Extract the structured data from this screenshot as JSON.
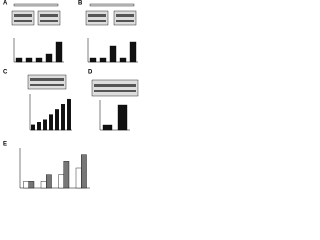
{
  "chart_data": [
    {
      "type": "bar",
      "label": "A",
      "values": [
        1,
        1,
        1,
        2,
        5
      ],
      "color": "#111111",
      "ylim": [
        0,
        6
      ]
    },
    {
      "type": "bar",
      "label": "B",
      "values": [
        1,
        1,
        4,
        1,
        5
      ],
      "color": "#111111",
      "ylim": [
        0,
        6
      ]
    },
    {
      "type": "bar",
      "label": "C",
      "values": [
        1,
        1.5,
        2,
        3,
        4,
        5,
        6
      ],
      "color": "#111111",
      "ylim": [
        0,
        7
      ]
    },
    {
      "type": "bar",
      "label": "D",
      "values": [
        1,
        5
      ],
      "color": "#111111",
      "ylim": [
        0,
        6
      ]
    },
    {
      "type": "bar",
      "label": "E",
      "series": [
        {
          "color": "#ffffff",
          "values": [
            1,
            1,
            2,
            3
          ]
        },
        {
          "color": "#777777",
          "values": [
            1,
            2,
            4,
            5
          ]
        }
      ],
      "ylim": [
        0,
        6
      ]
    }
  ]
}
